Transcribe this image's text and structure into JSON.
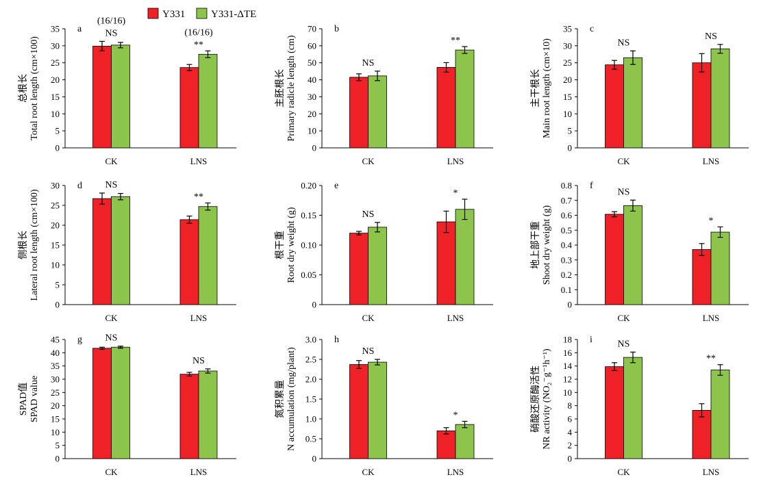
{
  "legend": {
    "series": [
      {
        "name": "Y331",
        "color": "#ee2127"
      },
      {
        "name": "Y331-ΔTE",
        "color": "#8dc54c"
      }
    ]
  },
  "chart_data": [
    {
      "type": "bar",
      "panel": "a",
      "ylabel_cn": "总根长",
      "ylabel_en": "Total root length (cm×100)",
      "ylim": [
        0,
        35
      ],
      "yticks": [
        0,
        5,
        10,
        15,
        20,
        25,
        30,
        35
      ],
      "categories": [
        "CK",
        "LNS"
      ],
      "series": [
        {
          "name": "Y331",
          "values": [
            29.9,
            23.6
          ],
          "errors": [
            1.4,
            0.9
          ]
        },
        {
          "name": "Y331-ΔTE",
          "values": [
            30.2,
            27.5
          ],
          "errors": [
            0.8,
            1.0
          ]
        }
      ],
      "significance": [
        "NS",
        "**"
      ],
      "annotations": [
        "(16/16)",
        "(16/16)"
      ]
    },
    {
      "type": "bar",
      "panel": "b",
      "ylabel_cn": "主胚根长",
      "ylabel_en": "Primary radicle length (cm)",
      "ylim": [
        0,
        70
      ],
      "yticks": [
        0,
        10,
        20,
        30,
        40,
        50,
        60,
        70
      ],
      "categories": [
        "CK",
        "LNS"
      ],
      "series": [
        {
          "name": "Y331",
          "values": [
            41.5,
            47.3
          ],
          "errors": [
            2.0,
            2.8
          ]
        },
        {
          "name": "Y331-ΔTE",
          "values": [
            42.3,
            57.5
          ],
          "errors": [
            2.8,
            2.0
          ]
        }
      ],
      "significance": [
        "NS",
        "**"
      ]
    },
    {
      "type": "bar",
      "panel": "c",
      "ylabel_cn": "主干根长",
      "ylabel_en": "Main root length (cm×10)",
      "ylim": [
        0,
        35
      ],
      "yticks": [
        0,
        5,
        10,
        15,
        20,
        25,
        30,
        35
      ],
      "categories": [
        "CK",
        "LNS"
      ],
      "series": [
        {
          "name": "Y331",
          "values": [
            24.4,
            25.0
          ],
          "errors": [
            1.3,
            2.7
          ]
        },
        {
          "name": "Y331-ΔTE",
          "values": [
            26.5,
            29.1
          ],
          "errors": [
            2.0,
            1.3
          ]
        }
      ],
      "significance": [
        "NS",
        "NS"
      ]
    },
    {
      "type": "bar",
      "panel": "d",
      "ylabel_cn": "侧根长",
      "ylabel_en": "Lateral root length (cm×100)",
      "ylim": [
        0,
        30
      ],
      "yticks": [
        0,
        5,
        10,
        15,
        20,
        25,
        30
      ],
      "categories": [
        "CK",
        "LNS"
      ],
      "series": [
        {
          "name": "Y331",
          "values": [
            26.7,
            21.4
          ],
          "errors": [
            1.4,
            0.9
          ]
        },
        {
          "name": "Y331-ΔTE",
          "values": [
            27.2,
            24.7
          ],
          "errors": [
            0.8,
            0.9
          ]
        }
      ],
      "significance": [
        "NS",
        "**"
      ]
    },
    {
      "type": "bar",
      "panel": "e",
      "ylabel_cn": "根干重",
      "ylabel_en": "Root dry weight (g)",
      "ylim": [
        0,
        0.2
      ],
      "yticks": [
        0,
        0.05,
        0.1,
        0.15,
        0.2
      ],
      "ytick_labels": [
        "0",
        "0.05",
        "0.10",
        "0.15",
        "0.20"
      ],
      "categories": [
        "CK",
        "LNS"
      ],
      "series": [
        {
          "name": "Y331",
          "values": [
            0.12,
            0.139
          ],
          "errors": [
            0.003,
            0.018
          ]
        },
        {
          "name": "Y331-ΔTE",
          "values": [
            0.13,
            0.16
          ],
          "errors": [
            0.008,
            0.017
          ]
        }
      ],
      "significance": [
        "NS",
        "*"
      ]
    },
    {
      "type": "bar",
      "panel": "f",
      "ylabel_cn": "地上部干重",
      "ylabel_en": "Shoot dry weight (g)",
      "ylim": [
        0,
        0.8
      ],
      "yticks": [
        0,
        0.1,
        0.2,
        0.3,
        0.4,
        0.5,
        0.6,
        0.7,
        0.8
      ],
      "ytick_labels": [
        "0",
        "0.1",
        "0.2",
        "0.3",
        "0.4",
        "0.5",
        "0.6",
        "0.7",
        "0.8"
      ],
      "categories": [
        "CK",
        "LNS"
      ],
      "series": [
        {
          "name": "Y331",
          "values": [
            0.607,
            0.37
          ],
          "errors": [
            0.017,
            0.04
          ]
        },
        {
          "name": "Y331-ΔTE",
          "values": [
            0.665,
            0.487
          ],
          "errors": [
            0.037,
            0.035
          ]
        }
      ],
      "significance": [
        "NS",
        "*"
      ]
    },
    {
      "type": "bar",
      "panel": "g",
      "ylabel_cn": "SPAD值",
      "ylabel_en": "SPAD value",
      "ylim": [
        0,
        45
      ],
      "yticks": [
        0,
        5,
        10,
        15,
        20,
        25,
        30,
        35,
        40,
        45
      ],
      "categories": [
        "CK",
        "LNS"
      ],
      "series": [
        {
          "name": "Y331",
          "values": [
            41.7,
            31.9
          ],
          "errors": [
            0.4,
            0.7
          ]
        },
        {
          "name": "Y331-ΔTE",
          "values": [
            42.1,
            33.1
          ],
          "errors": [
            0.4,
            0.8
          ]
        }
      ],
      "significance": [
        "NS",
        "NS"
      ]
    },
    {
      "type": "bar",
      "panel": "h",
      "ylabel_cn": "氮积累量",
      "ylabel_en": "N accumulation (mg/plant)",
      "ylim": [
        0,
        3
      ],
      "yticks": [
        0,
        0.5,
        1,
        1.5,
        2,
        2.5,
        3
      ],
      "ytick_labels": [
        "0",
        "0.5",
        "1.0",
        "1.5",
        "2.0",
        "2.5",
        "3.0"
      ],
      "categories": [
        "CK",
        "LNS"
      ],
      "series": [
        {
          "name": "Y331",
          "values": [
            2.37,
            0.7
          ],
          "errors": [
            0.1,
            0.08
          ]
        },
        {
          "name": "Y331-ΔTE",
          "values": [
            2.43,
            0.86
          ],
          "errors": [
            0.07,
            0.08
          ]
        }
      ],
      "significance": [
        "NS",
        "*"
      ]
    },
    {
      "type": "bar",
      "panel": "i",
      "ylabel_cn": "硝酸还原酶活性",
      "ylabel_en": "NR activity (NO₂⁻g⁻¹h⁻¹)",
      "ylim": [
        0,
        18
      ],
      "yticks": [
        0,
        2,
        4,
        6,
        8,
        10,
        12,
        14,
        16,
        18
      ],
      "categories": [
        "CK",
        "LNS"
      ],
      "series": [
        {
          "name": "Y331",
          "values": [
            13.9,
            7.3
          ],
          "errors": [
            0.6,
            1.0
          ]
        },
        {
          "name": "Y331-ΔTE",
          "values": [
            15.3,
            13.4
          ],
          "errors": [
            0.8,
            0.8
          ]
        }
      ],
      "significance": [
        "NS",
        "**"
      ]
    }
  ]
}
